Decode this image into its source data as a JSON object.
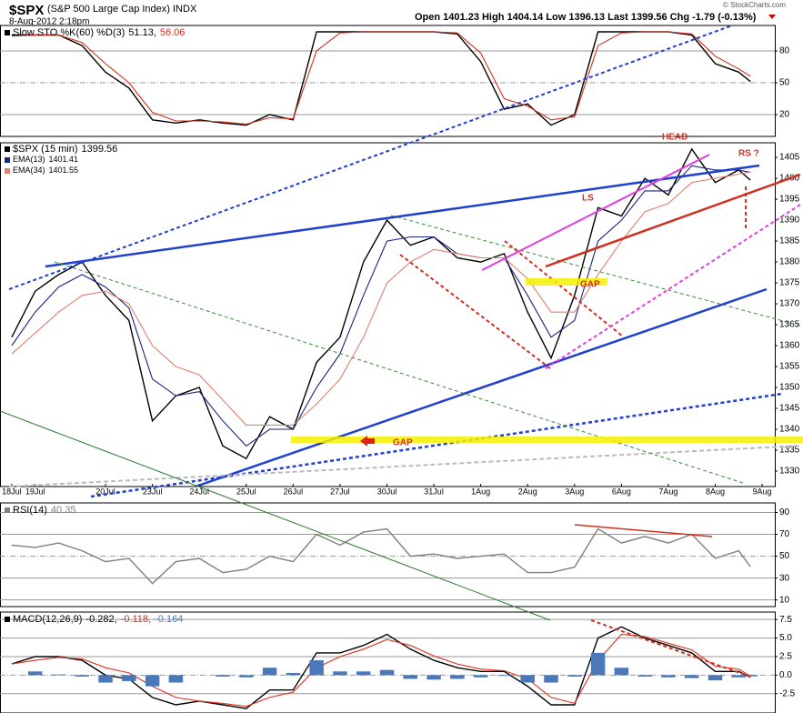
{
  "header": {
    "symbol": "$SPX",
    "name": "(S&P 500 Large Cap Index) INDX",
    "date": "8-Aug-2012 2:18pm",
    "quote": "Open 1401.23  High 1404.14  Low 1396.13  Last 1399.56  Chg -1.79 (-0.13%)",
    "copyright": "© StockCharts.com"
  },
  "annotations": {
    "head": "HEAD",
    "ls": "LS",
    "rs": "RS ?",
    "gap1": "GAP",
    "gap2": "GAP"
  },
  "chart_data": [
    {
      "type": "line",
      "title": "Slow STO %K(60) %D(3)",
      "grid": true,
      "x": [
        0,
        0.5,
        1,
        1.5,
        2,
        2.5,
        3,
        3.5,
        4,
        4.5,
        5,
        5.5,
        6,
        6.5,
        7,
        7.5,
        8,
        8.5,
        9,
        9.5,
        10,
        10.5,
        11,
        11.5,
        12,
        12.5,
        13,
        13.5,
        14,
        14.5,
        15,
        15.5,
        15.75
      ],
      "xlim": [
        -0.25,
        16.27
      ],
      "ylim": [
        -0.6,
        104
      ],
      "yticks": [
        20,
        50,
        80
      ],
      "series": [
        {
          "color": "#000000",
          "last": "51.13,",
          "values": [
            95,
            95,
            95,
            85,
            60,
            45,
            15,
            12,
            15,
            12,
            10,
            20,
            15,
            98,
            98,
            98,
            98,
            98,
            98,
            96,
            70,
            25,
            30,
            10,
            20,
            98,
            98,
            98,
            98,
            95,
            68,
            60,
            51.13
          ]
        },
        {
          "color": "#d03020",
          "last": "56.06",
          "values": [
            94,
            95,
            95,
            88,
            68,
            50,
            22,
            14,
            14,
            13,
            11,
            17,
            16,
            80,
            97,
            98,
            98,
            98,
            98,
            97,
            78,
            35,
            28,
            15,
            18,
            85,
            97,
            98,
            98,
            96,
            75,
            63,
            56.06
          ]
        }
      ]
    },
    {
      "type": "line",
      "grid": false,
      "x": [
        0,
        0.5,
        1,
        1.5,
        2,
        2.5,
        3,
        3.5,
        4,
        4.5,
        5,
        5.5,
        6,
        6.5,
        7,
        7.5,
        8,
        8.5,
        9,
        9.5,
        10,
        10.5,
        11,
        11.5,
        12,
        12.5,
        13,
        13.5,
        14,
        14.5,
        15,
        15.5,
        15.75
      ],
      "xlim": [
        -0.25,
        16.27
      ],
      "ylim": [
        1326.3,
        1408.5
      ],
      "yticks": [
        1330,
        1335,
        1340,
        1345,
        1350,
        1355,
        1360,
        1365,
        1370,
        1375,
        1380,
        1385,
        1390,
        1395,
        1400,
        1405
      ],
      "xticks": [
        {
          "value": 0,
          "label": "18Jul"
        },
        {
          "value": 0.5,
          "label": "19Jul"
        },
        {
          "value": 2,
          "label": "20Jul"
        },
        {
          "value": 3,
          "label": "23Jul"
        },
        {
          "value": 4,
          "label": "24Jul"
        },
        {
          "value": 5,
          "label": "25Jul"
        },
        {
          "value": 6,
          "label": "26Jul"
        },
        {
          "value": 7,
          "label": "27Jul"
        },
        {
          "value": 8,
          "label": "30Jul"
        },
        {
          "value": 9,
          "label": "31Jul"
        },
        {
          "value": 10,
          "label": "1Aug"
        },
        {
          "value": 11,
          "label": "2Aug"
        },
        {
          "value": 12,
          "label": "3Aug"
        },
        {
          "value": 13,
          "label": "6Aug"
        },
        {
          "value": 14,
          "label": "7Aug"
        },
        {
          "value": 15,
          "label": "8Aug"
        },
        {
          "value": 16,
          "label": "9Aug"
        }
      ],
      "series": [
        {
          "name": "$SPX (15 min)",
          "color": "#000000",
          "last": "1399.56",
          "values": [
            1362,
            1373,
            1377,
            1380,
            1372,
            1366,
            1342,
            1348,
            1350,
            1336,
            1333,
            1343,
            1340,
            1356,
            1362,
            1380,
            1390,
            1384,
            1386,
            1381,
            1380,
            1382,
            1368,
            1357,
            1372,
            1393,
            1391,
            1400,
            1396,
            1407,
            1399,
            1402,
            1399.56
          ]
        },
        {
          "name": "EMA(13)",
          "color": "#1a237e",
          "last": "1401.41",
          "values": [
            1360,
            1368,
            1374,
            1377,
            1374,
            1369,
            1352,
            1348,
            1349,
            1342,
            1336,
            1340,
            1340,
            1350,
            1358,
            1372,
            1385,
            1386,
            1386,
            1382,
            1381,
            1381,
            1372,
            1362,
            1366,
            1385,
            1390,
            1397,
            1397,
            1403,
            1402,
            1402,
            1401.41
          ]
        },
        {
          "name": "EMA(34)",
          "color": "#e08070",
          "last": "1401.55",
          "values": [
            1358,
            1363,
            1368,
            1372,
            1373,
            1370,
            1360,
            1355,
            1353,
            1347,
            1341,
            1341,
            1341,
            1346,
            1352,
            1362,
            1375,
            1380,
            1383,
            1382,
            1381,
            1381,
            1376,
            1368,
            1368,
            1377,
            1385,
            1392,
            1394,
            1399,
            1400,
            1401,
            1401.55
          ]
        }
      ]
    },
    {
      "type": "line",
      "title": "RSI(14)",
      "grid": true,
      "x": [
        0,
        0.5,
        1,
        1.5,
        2,
        2.5,
        3,
        3.5,
        4,
        4.5,
        5,
        5.5,
        6,
        6.5,
        7,
        7.5,
        8,
        8.5,
        9,
        9.5,
        10,
        10.5,
        11,
        11.5,
        12,
        12.5,
        13,
        13.5,
        14,
        14.5,
        15,
        15.5,
        15.75
      ],
      "xlim": [
        -0.25,
        16.27
      ],
      "ylim": [
        3.9,
        98.7
      ],
      "yticks": [
        10,
        30,
        50,
        70,
        90
      ],
      "series": [
        {
          "color": "#808080",
          "last": "40.35",
          "values": [
            60,
            58,
            62,
            55,
            45,
            48,
            25,
            45,
            48,
            35,
            38,
            50,
            45,
            70,
            60,
            72,
            75,
            50,
            52,
            48,
            50,
            52,
            35,
            35,
            40,
            75,
            62,
            68,
            62,
            70,
            48,
            55,
            40.35
          ]
        }
      ]
    },
    {
      "type": "line",
      "title": "MACD(12,26,9)",
      "grid": true,
      "x": [
        0,
        0.5,
        1,
        1.5,
        2,
        2.5,
        3,
        3.5,
        4,
        4.5,
        5,
        5.5,
        6,
        6.5,
        7,
        7.5,
        8,
        8.5,
        9,
        9.5,
        10,
        10.5,
        11,
        11.5,
        12,
        12.5,
        13,
        13.5,
        14,
        14.5,
        15,
        15.5,
        15.75
      ],
      "xlim": [
        -0.25,
        16.27
      ],
      "ylim": [
        -5.1,
        8.5
      ],
      "yticks": [
        -2.5,
        {
          "value": 0,
          "label": "0.0"
        },
        2.5,
        {
          "value": 5,
          "label": "5.0"
        },
        7.5
      ],
      "series": [
        {
          "color": "#000000",
          "last": "-0.282,",
          "values": [
            1.5,
            2.5,
            2.5,
            2,
            0,
            -0.5,
            -3,
            -4,
            -3.5,
            -4,
            -4.5,
            -2,
            -2,
            3,
            3,
            4,
            5.5,
            3.5,
            2,
            1,
            0.5,
            0.5,
            -1.5,
            -4,
            -4,
            5,
            6.5,
            5,
            4,
            3,
            0.5,
            0.5,
            -0.282
          ]
        },
        {
          "color": "#e03020",
          "last": "-0.118,",
          "values": [
            1.5,
            2,
            2.4,
            2.2,
            1,
            0.3,
            -1.5,
            -3,
            -3.5,
            -3.8,
            -4.2,
            -3,
            -2.3,
            1,
            2.5,
            3.5,
            4.8,
            4,
            2.6,
            1.5,
            0.8,
            0.6,
            -0.5,
            -3,
            -3.8,
            2,
            5.5,
            5.2,
            4.3,
            3.4,
            1.2,
            0.8,
            -0.118
          ]
        },
        {
          "type": "bar",
          "color": "#4a78b8",
          "last": "-0.164",
          "values": [
            0,
            0.5,
            0.1,
            -0.2,
            -1,
            -0.8,
            -1.5,
            -1,
            0,
            -0.2,
            -0.3,
            1,
            0.3,
            2,
            0.5,
            0.5,
            0.7,
            -0.5,
            -0.6,
            -0.5,
            -0.3,
            -0.1,
            -1,
            -1,
            -0.2,
            3,
            1,
            -0.2,
            -0.3,
            -0.4,
            -0.7,
            -0.3,
            -0.164
          ]
        }
      ]
    }
  ]
}
